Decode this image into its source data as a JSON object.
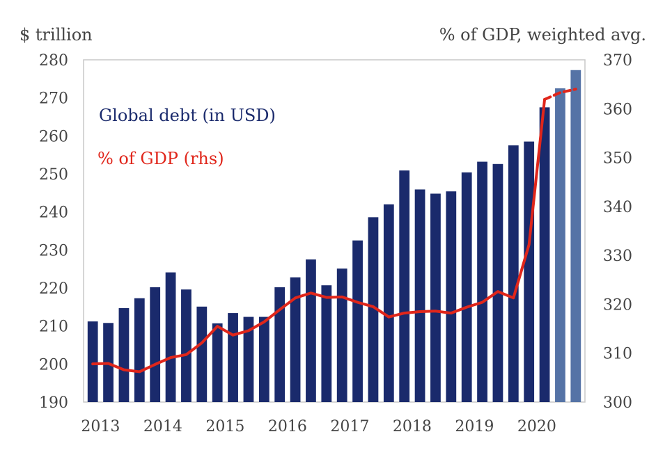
{
  "chart_data": {
    "type": "bar",
    "left_axis_label": "$ trillion",
    "right_axis_label": "% of GDP, weighted avg.",
    "left_ylim": [
      190,
      280
    ],
    "left_ticks": [
      190,
      200,
      210,
      220,
      230,
      240,
      250,
      260,
      270,
      280
    ],
    "right_ylim": [
      300,
      370
    ],
    "right_ticks": [
      300,
      310,
      320,
      330,
      340,
      350,
      360,
      370
    ],
    "x_tick_labels": [
      "2013",
      "2014",
      "2015",
      "2016",
      "2017",
      "2018",
      "2019",
      "2020"
    ],
    "legend": [
      {
        "label": "Global debt (in USD)",
        "color": "#1a2a6c"
      },
      {
        "label": "% of GDP (rhs)",
        "color": "#e0261b"
      }
    ],
    "grid": false,
    "series": [
      {
        "name": "Global debt (in USD)",
        "axis": "left",
        "kind": "bar",
        "color": "#1a2a6c",
        "estimate_color": "#5573a6",
        "values": [
          211.2,
          210.8,
          214.7,
          217.3,
          220.2,
          224.1,
          219.6,
          215.1,
          210.7,
          213.4,
          212.4,
          212.4,
          220.2,
          222.8,
          227.5,
          220.7,
          225.1,
          232.5,
          238.6,
          242.0,
          250.9,
          245.9,
          244.8,
          245.4,
          250.4,
          253.2,
          252.6,
          257.5,
          258.5,
          267.5,
          272.5,
          277.3
        ],
        "estimate_from_index": 30
      },
      {
        "name": "% of GDP (rhs)",
        "axis": "right",
        "kind": "line",
        "color": "#e0261b",
        "values": [
          307.8,
          307.9,
          306.6,
          306.2,
          307.7,
          309.1,
          309.7,
          312.1,
          315.5,
          313.7,
          314.6,
          316.4,
          318.9,
          321.3,
          322.3,
          321.4,
          321.5,
          320.4,
          319.5,
          317.4,
          318.2,
          318.5,
          318.6,
          318.2,
          319.4,
          320.4,
          322.6,
          321.3,
          332.2,
          361.9,
          363.3,
          364.0
        ],
        "dashed_from_index": 29
      }
    ]
  }
}
